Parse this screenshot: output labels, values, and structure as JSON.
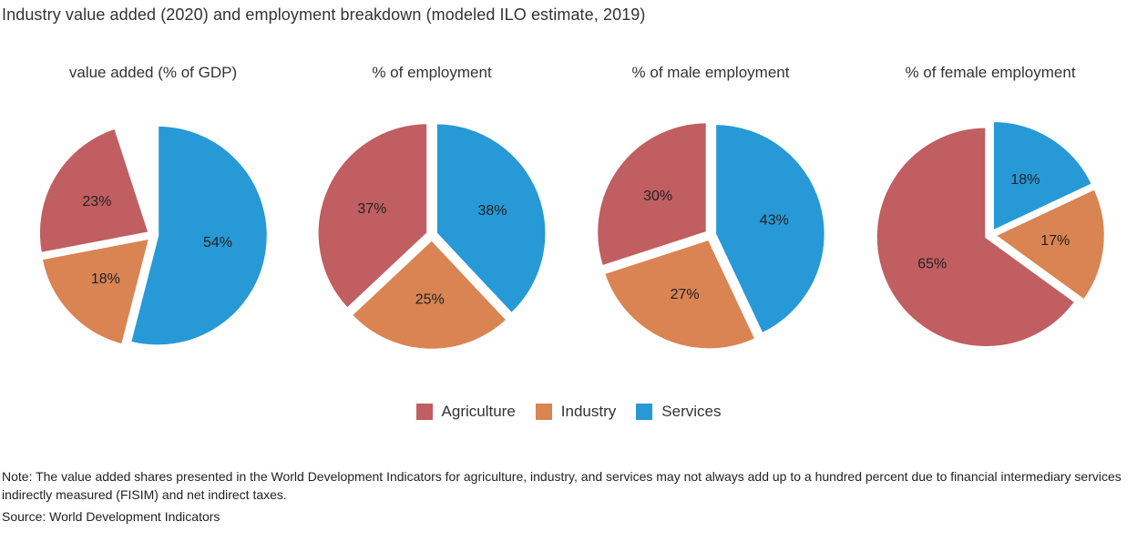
{
  "title": "Industry value added (2020) and employment breakdown (modeled ILO estimate, 2019)",
  "colors": {
    "Agriculture": "#c05e62",
    "Industry": "#d98452",
    "Services": "#2799d6"
  },
  "chart_data": [
    {
      "type": "pie",
      "title": "value added (% of GDP)",
      "slices": [
        {
          "label": "Services",
          "value": 54,
          "text": "54%"
        },
        {
          "label": "Industry",
          "value": 18,
          "text": "18%"
        },
        {
          "label": "Agriculture",
          "value": 23,
          "text": "23%"
        }
      ],
      "total": 100
    },
    {
      "type": "pie",
      "title": "% of employment",
      "slices": [
        {
          "label": "Services",
          "value": 38,
          "text": "38%"
        },
        {
          "label": "Industry",
          "value": 25,
          "text": "25%"
        },
        {
          "label": "Agriculture",
          "value": 37,
          "text": "37%"
        }
      ],
      "total": 100
    },
    {
      "type": "pie",
      "title": "% of male employment",
      "slices": [
        {
          "label": "Services",
          "value": 43,
          "text": "43%"
        },
        {
          "label": "Industry",
          "value": 27,
          "text": "27%"
        },
        {
          "label": "Agriculture",
          "value": 30,
          "text": "30%"
        }
      ],
      "total": 100
    },
    {
      "type": "pie",
      "title": "% of female employment",
      "slices": [
        {
          "label": "Services",
          "value": 18,
          "text": "18%"
        },
        {
          "label": "Industry",
          "value": 17,
          "text": "17%"
        },
        {
          "label": "Agriculture",
          "value": 65,
          "text": "65%"
        }
      ],
      "total": 100
    }
  ],
  "legend": {
    "items": [
      "Agriculture",
      "Industry",
      "Services"
    ],
    "placement": "bottom-center"
  },
  "note": "Note: The value added shares presented in the World Development Indicators for agriculture, industry, and services may not always add up to a hundred percent due to financial intermediary services indirectly measured (FISIM) and net indirect taxes.",
  "source": "Source: World Development Indicators"
}
